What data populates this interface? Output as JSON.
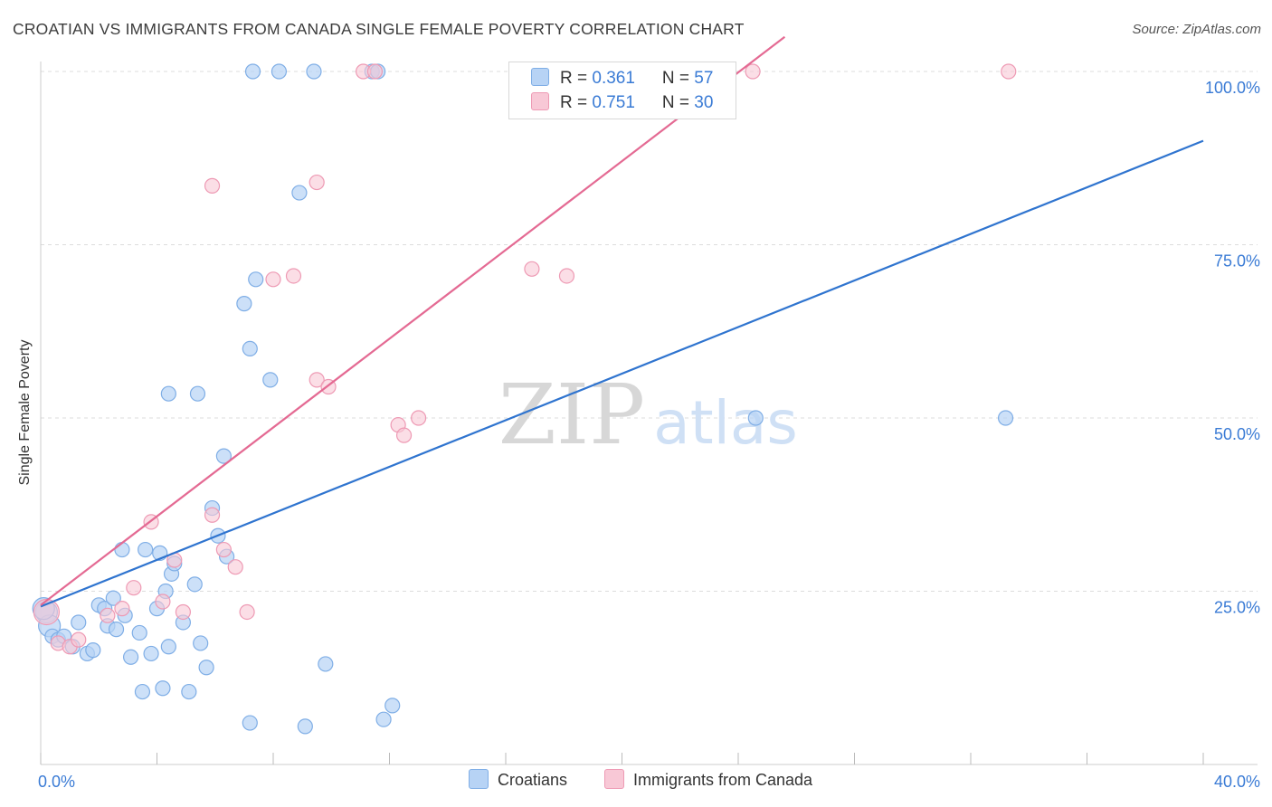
{
  "title": "CROATIAN VS IMMIGRANTS FROM CANADA SINGLE FEMALE POVERTY CORRELATION CHART",
  "source": "Source: ZipAtlas.com",
  "watermark": {
    "zip": "ZIP",
    "atlas": "atlas"
  },
  "legend": {
    "r_label": "R = ",
    "n_label": "N = ",
    "croatians": {
      "r": "0.361",
      "n": "57"
    },
    "canada": {
      "r": "0.751",
      "n": "30"
    }
  },
  "bottom_legend": {
    "croatians": "Croatians",
    "canada": "Immigrants from Canada"
  },
  "colors": {
    "blue_fill": "#b7d3f5",
    "blue_stroke": "#7faee6",
    "blue_line": "#2f74cf",
    "pink_fill": "#f8c8d6",
    "pink_stroke": "#ee9ab4",
    "pink_line": "#e46a93",
    "tick_label": "#3a7bd5",
    "grid": "#dddddd"
  },
  "chart_data": {
    "type": "scatter",
    "title": "CROATIAN VS IMMIGRANTS FROM CANADA SINGLE FEMALE POVERTY CORRELATION CHART",
    "xlabel": "",
    "ylabel": "Single Female Poverty",
    "xlim": [
      0,
      40
    ],
    "ylim": [
      0,
      105
    ],
    "x_tick_labels": [
      {
        "value": 0,
        "label": "0.0%"
      },
      {
        "value": 40,
        "label": "40.0%"
      }
    ],
    "y_tick_labels": [
      {
        "value": 25,
        "label": "25.0%"
      },
      {
        "value": 50,
        "label": "50.0%"
      },
      {
        "value": 75,
        "label": "75.0%"
      },
      {
        "value": 100,
        "label": "100.0%"
      }
    ],
    "series": [
      {
        "name": "Croatians",
        "R": 0.361,
        "N": 57,
        "trend": {
          "x": [
            0,
            40
          ],
          "y": [
            22.8,
            90.0
          ]
        },
        "points": [
          [
            0.2,
            22.0
          ],
          [
            0.3,
            20.0
          ],
          [
            0.4,
            18.5
          ],
          [
            0.6,
            18.0
          ],
          [
            0.8,
            18.5
          ],
          [
            1.1,
            17.0
          ],
          [
            1.3,
            20.5
          ],
          [
            1.6,
            16.0
          ],
          [
            1.8,
            16.5
          ],
          [
            2.0,
            23.0
          ],
          [
            2.2,
            22.5
          ],
          [
            2.3,
            20.0
          ],
          [
            2.5,
            24.0
          ],
          [
            2.6,
            19.5
          ],
          [
            2.9,
            21.5
          ],
          [
            3.1,
            15.5
          ],
          [
            3.4,
            19.0
          ],
          [
            3.5,
            10.5
          ],
          [
            3.8,
            16.0
          ],
          [
            4.0,
            22.5
          ],
          [
            4.1,
            30.5
          ],
          [
            4.2,
            11.0
          ],
          [
            4.3,
            25.0
          ],
          [
            4.4,
            17.0
          ],
          [
            4.5,
            27.5
          ],
          [
            4.6,
            29.0
          ],
          [
            4.9,
            20.5
          ],
          [
            5.1,
            10.5
          ],
          [
            5.3,
            26.0
          ],
          [
            5.5,
            17.5
          ],
          [
            5.7,
            14.0
          ],
          [
            5.9,
            37.0
          ],
          [
            6.1,
            33.0
          ],
          [
            6.3,
            44.5
          ],
          [
            6.4,
            30.0
          ],
          [
            7.0,
            66.5
          ],
          [
            7.2,
            60.0
          ],
          [
            7.4,
            70.0
          ],
          [
            7.9,
            55.5
          ],
          [
            3.6,
            31.0
          ],
          [
            2.8,
            31.0
          ],
          [
            4.4,
            53.5
          ],
          [
            5.4,
            53.5
          ],
          [
            8.9,
            82.5
          ],
          [
            9.8,
            14.5
          ],
          [
            11.8,
            6.5
          ],
          [
            12.1,
            8.5
          ],
          [
            7.2,
            6.0
          ],
          [
            9.1,
            5.5
          ],
          [
            7.3,
            100.0
          ],
          [
            8.2,
            100.0
          ],
          [
            9.4,
            100.0
          ],
          [
            11.4,
            100.0
          ],
          [
            11.6,
            100.0
          ],
          [
            24.6,
            50.0
          ],
          [
            33.2,
            50.0
          ],
          [
            0.1,
            22.5
          ]
        ]
      },
      {
        "name": "Immigrants from Canada",
        "R": 0.751,
        "N": 30,
        "trend": {
          "x": [
            0,
            25.6
          ],
          "y": [
            23.0,
            105.0
          ]
        },
        "points": [
          [
            0.2,
            22.0
          ],
          [
            0.6,
            17.5
          ],
          [
            1.0,
            17.0
          ],
          [
            1.3,
            18.0
          ],
          [
            2.3,
            21.5
          ],
          [
            2.8,
            22.5
          ],
          [
            3.2,
            25.5
          ],
          [
            3.8,
            35.0
          ],
          [
            4.2,
            23.5
          ],
          [
            4.6,
            29.5
          ],
          [
            4.9,
            22.0
          ],
          [
            5.9,
            36.0
          ],
          [
            6.3,
            31.0
          ],
          [
            6.7,
            28.5
          ],
          [
            7.1,
            22.0
          ],
          [
            5.9,
            83.5
          ],
          [
            8.0,
            70.0
          ],
          [
            8.7,
            70.5
          ],
          [
            9.5,
            84.0
          ],
          [
            9.5,
            55.5
          ],
          [
            9.9,
            54.5
          ],
          [
            12.3,
            49.0
          ],
          [
            12.5,
            47.5
          ],
          [
            13.0,
            50.0
          ],
          [
            11.1,
            100.0
          ],
          [
            11.5,
            100.0
          ],
          [
            16.9,
            71.5
          ],
          [
            18.1,
            70.5
          ],
          [
            24.5,
            100.0
          ],
          [
            33.3,
            100.0
          ]
        ]
      }
    ]
  }
}
